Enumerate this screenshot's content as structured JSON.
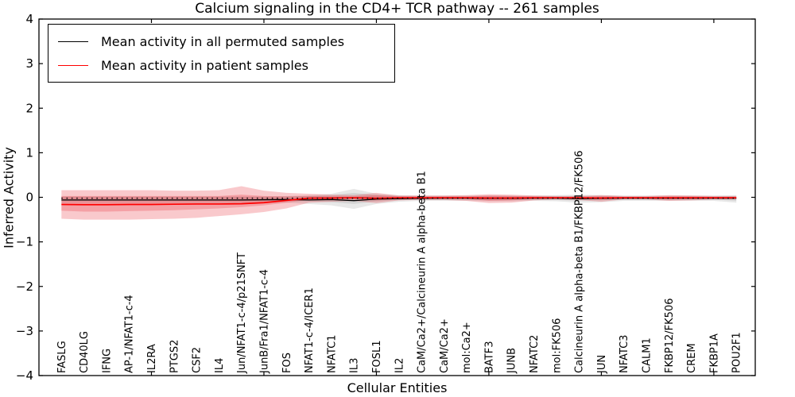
{
  "chart_data": {
    "type": "line",
    "title": "Calcium signaling in the CD4+ TCR pathway -- 261 samples",
    "xlabel": "Cellular Entities",
    "ylabel": "Inferred Activity",
    "ylim": [
      -4,
      4
    ],
    "ytick_values": [
      4,
      3,
      2,
      1,
      0,
      -1,
      -2,
      -3,
      -4
    ],
    "ytick_labels": [
      "4",
      "3",
      "2",
      "1",
      "0",
      "−1",
      "−2",
      "−3",
      "−4"
    ],
    "grid": false,
    "legend": {
      "position": "upper left",
      "entries": [
        {
          "label": "Mean activity in all permuted samples",
          "color": "#000000"
        },
        {
          "label": "Mean activity in patient samples",
          "color": "#ff0000"
        }
      ]
    },
    "categories": [
      "FASLG",
      "CD40LG",
      "IFNG",
      "AP-1/NFAT1-c-4",
      "IL2RA",
      "PTGS2",
      "CSF2",
      "IL4",
      "Jun/NFAT1-c-4/p21SNFT",
      "JunB/Fra1/NFAT1-c-4",
      "FOS",
      "NFAT1-c-4/ICER1",
      "NFATC1",
      "IL3",
      "FOSL1",
      "IL2",
      "CaM/Ca2+/Calcineurin A alpha-beta B1",
      "CaM/Ca2+",
      "mol:Ca2+",
      "BATF3",
      "JUNB",
      "NFATC2",
      "mol:FK506",
      "Calcineurin A alpha-beta B1/FKBP12/FK506",
      "JUN",
      "NFATC3",
      "CALM1",
      "FKBP12/FK506",
      "CREM",
      "FKBP1A",
      "POU2F1"
    ],
    "series": [
      {
        "name": "Mean activity in all permuted samples",
        "color": "#000000",
        "style": "solid",
        "width": 1.3,
        "values": [
          -0.06,
          -0.06,
          -0.06,
          -0.06,
          -0.06,
          -0.06,
          -0.06,
          -0.06,
          -0.06,
          -0.055,
          -0.05,
          -0.06,
          -0.05,
          -0.075,
          -0.04,
          -0.03,
          -0.025,
          -0.02,
          -0.02,
          -0.025,
          -0.025,
          -0.02,
          -0.02,
          -0.03,
          -0.025,
          -0.02,
          -0.02,
          -0.02,
          -0.02,
          -0.02,
          -0.02
        ]
      },
      {
        "name": "Mean activity in patient samples",
        "color": "#ff0000",
        "style": "solid",
        "width": 1.7,
        "values": [
          -0.16,
          -0.165,
          -0.165,
          -0.16,
          -0.16,
          -0.155,
          -0.15,
          -0.15,
          -0.145,
          -0.12,
          -0.07,
          -0.02,
          -0.015,
          -0.01,
          -0.02,
          -0.01,
          -0.01,
          -0.01,
          -0.01,
          -0.015,
          -0.015,
          -0.01,
          -0.01,
          -0.01,
          -0.015,
          -0.01,
          -0.01,
          -0.01,
          -0.01,
          -0.01,
          -0.01
        ]
      },
      {
        "name": "zero reference",
        "color": "#000000",
        "style": "dotted",
        "width": 1.5,
        "values": [
          -0.02,
          -0.02,
          -0.02,
          -0.02,
          -0.02,
          -0.02,
          -0.02,
          -0.02,
          -0.02,
          -0.02,
          -0.02,
          -0.02,
          -0.02,
          -0.02,
          -0.02,
          -0.02,
          -0.02,
          -0.02,
          -0.02,
          -0.02,
          -0.02,
          -0.02,
          -0.02,
          -0.02,
          -0.02,
          -0.02,
          -0.02,
          -0.02,
          -0.02,
          -0.02,
          -0.02
        ]
      }
    ],
    "bands": [
      {
        "name": "permuted-range-outer",
        "color": "rgba(110,110,110,0.16)",
        "upper": [
          0.02,
          0.02,
          0.02,
          0.02,
          0.02,
          0.02,
          0.02,
          0.02,
          0.02,
          0.02,
          0.03,
          0.05,
          0.08,
          0.19,
          0.08,
          0.05,
          0.04,
          0.04,
          0.04,
          0.04,
          0.04,
          0.04,
          0.05,
          0.06,
          0.05,
          0.04,
          0.04,
          0.04,
          0.04,
          0.04,
          0.05
        ],
        "lower": [
          -0.13,
          -0.13,
          -0.13,
          -0.13,
          -0.13,
          -0.13,
          -0.13,
          -0.13,
          -0.13,
          -0.13,
          -0.12,
          -0.15,
          -0.18,
          -0.26,
          -0.15,
          -0.1,
          -0.08,
          -0.08,
          -0.08,
          -0.09,
          -0.09,
          -0.08,
          -0.09,
          -0.12,
          -0.11,
          -0.08,
          -0.08,
          -0.08,
          -0.08,
          -0.08,
          -0.12
        ]
      },
      {
        "name": "permuted-range-inner",
        "color": "rgba(110,110,110,0.16)",
        "upper": [
          0.01,
          0.01,
          0.01,
          0.01,
          0.01,
          0.01,
          0.01,
          0.01,
          0.01,
          0.01,
          0.02,
          0.03,
          0.05,
          0.1,
          0.05,
          0.03,
          0.02,
          0.02,
          0.02,
          0.02,
          0.02,
          0.02,
          0.03,
          0.03,
          0.03,
          0.02,
          0.02,
          0.02,
          0.02,
          0.02,
          0.03
        ],
        "lower": [
          -0.08,
          -0.08,
          -0.08,
          -0.08,
          -0.08,
          -0.08,
          -0.08,
          -0.08,
          -0.08,
          -0.08,
          -0.08,
          -0.09,
          -0.11,
          -0.15,
          -0.09,
          -0.07,
          -0.05,
          -0.05,
          -0.05,
          -0.06,
          -0.06,
          -0.05,
          -0.06,
          -0.08,
          -0.07,
          -0.05,
          -0.05,
          -0.05,
          -0.05,
          -0.05,
          -0.08
        ]
      },
      {
        "name": "patient-range-outer",
        "color": "rgba(230,30,40,0.24)",
        "upper": [
          0.16,
          0.16,
          0.16,
          0.16,
          0.16,
          0.15,
          0.15,
          0.16,
          0.25,
          0.15,
          0.1,
          0.08,
          0.06,
          0.05,
          0.1,
          0.04,
          0.04,
          0.04,
          0.05,
          0.07,
          0.06,
          0.04,
          0.03,
          0.03,
          0.05,
          0.03,
          0.03,
          0.05,
          0.04,
          0.03,
          0.03
        ],
        "lower": [
          -0.48,
          -0.5,
          -0.5,
          -0.5,
          -0.49,
          -0.48,
          -0.46,
          -0.42,
          -0.38,
          -0.33,
          -0.25,
          -0.12,
          -0.1,
          -0.08,
          -0.13,
          -0.07,
          -0.06,
          -0.06,
          -0.08,
          -0.13,
          -0.12,
          -0.07,
          -0.05,
          -0.06,
          -0.1,
          -0.05,
          -0.05,
          -0.08,
          -0.07,
          -0.05,
          -0.05
        ]
      },
      {
        "name": "patient-range-inner",
        "color": "rgba(230,30,40,0.24)",
        "upper": [
          0.03,
          0.03,
          0.03,
          0.03,
          0.03,
          0.03,
          0.03,
          0.03,
          0.06,
          0.03,
          0.02,
          0.03,
          0.02,
          0.02,
          0.05,
          0.02,
          0.02,
          0.02,
          0.02,
          0.04,
          0.03,
          0.02,
          0.01,
          0.01,
          0.02,
          0.01,
          0.01,
          0.02,
          0.02,
          0.01,
          0.01
        ],
        "lower": [
          -0.3,
          -0.32,
          -0.32,
          -0.31,
          -0.3,
          -0.29,
          -0.27,
          -0.25,
          -0.22,
          -0.18,
          -0.12,
          -0.06,
          -0.05,
          -0.04,
          -0.07,
          -0.04,
          -0.03,
          -0.03,
          -0.04,
          -0.08,
          -0.07,
          -0.04,
          -0.03,
          -0.03,
          -0.05,
          -0.03,
          -0.03,
          -0.05,
          -0.04,
          -0.03,
          -0.03
        ]
      }
    ],
    "x_major_tick_indices": [
      4,
      9,
      14,
      19,
      24,
      29
    ]
  }
}
